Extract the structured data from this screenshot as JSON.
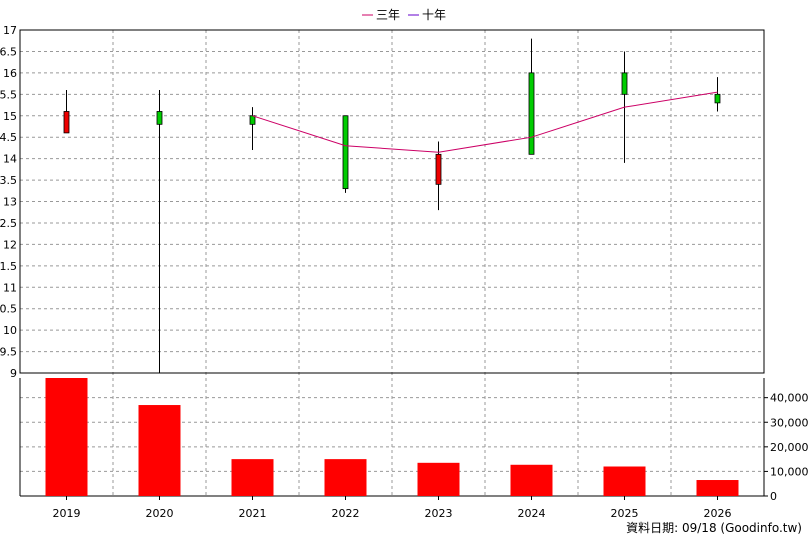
{
  "legend": [
    {
      "label": "三年",
      "color": "#cc0066"
    },
    {
      "label": "十年",
      "color": "#6600cc"
    }
  ],
  "footer": {
    "text": "資料日期: 09/18  (Goodinfo.tw)"
  },
  "colors": {
    "up": "#00cc00",
    "down": "#ee0000",
    "volume": "#ff0000",
    "grid": "#999999"
  },
  "chart_data": [
    {
      "type": "candlestick",
      "title": "",
      "categories": [
        "2019",
        "2020",
        "2021",
        "2022",
        "2023",
        "2024",
        "2025",
        "2026"
      ],
      "open": [
        15.1,
        14.8,
        14.8,
        13.3,
        14.1,
        14.1,
        15.5,
        15.3
      ],
      "close": [
        14.6,
        15.1,
        15.0,
        15.0,
        13.4,
        16.0,
        16.0,
        15.5
      ],
      "high": [
        15.6,
        15.6,
        15.2,
        15.0,
        14.4,
        16.8,
        16.5,
        15.9
      ],
      "low": [
        14.6,
        9.0,
        14.2,
        13.2,
        12.8,
        14.1,
        13.9,
        15.1
      ],
      "series": [
        {
          "name": "三年",
          "x": [
            "2021",
            "2022",
            "2023",
            "2024",
            "2025",
            "2026"
          ],
          "values": [
            15.0,
            14.3,
            14.15,
            14.5,
            15.2,
            15.55
          ]
        }
      ],
      "ylim": [
        9,
        17
      ],
      "yticks": [
        "9",
        "9.5",
        "10",
        "10.5",
        "11",
        "11.5",
        "12",
        "12.5",
        "13",
        "13.5",
        "14",
        "14.5",
        "15",
        "15.5",
        "16",
        "16.5",
        "17"
      ],
      "grid": true,
      "legend_position": "top-center"
    },
    {
      "type": "bar",
      "categories": [
        "2019",
        "2020",
        "2021",
        "2022",
        "2023",
        "2024",
        "2025",
        "2026"
      ],
      "values": [
        48000,
        37000,
        15000,
        15000,
        13500,
        12700,
        12000,
        6500
      ],
      "ylim": [
        0,
        48000
      ],
      "yticks": [
        "0",
        "10,000",
        "20,000",
        "30,000",
        "40,000"
      ],
      "grid": true
    }
  ]
}
